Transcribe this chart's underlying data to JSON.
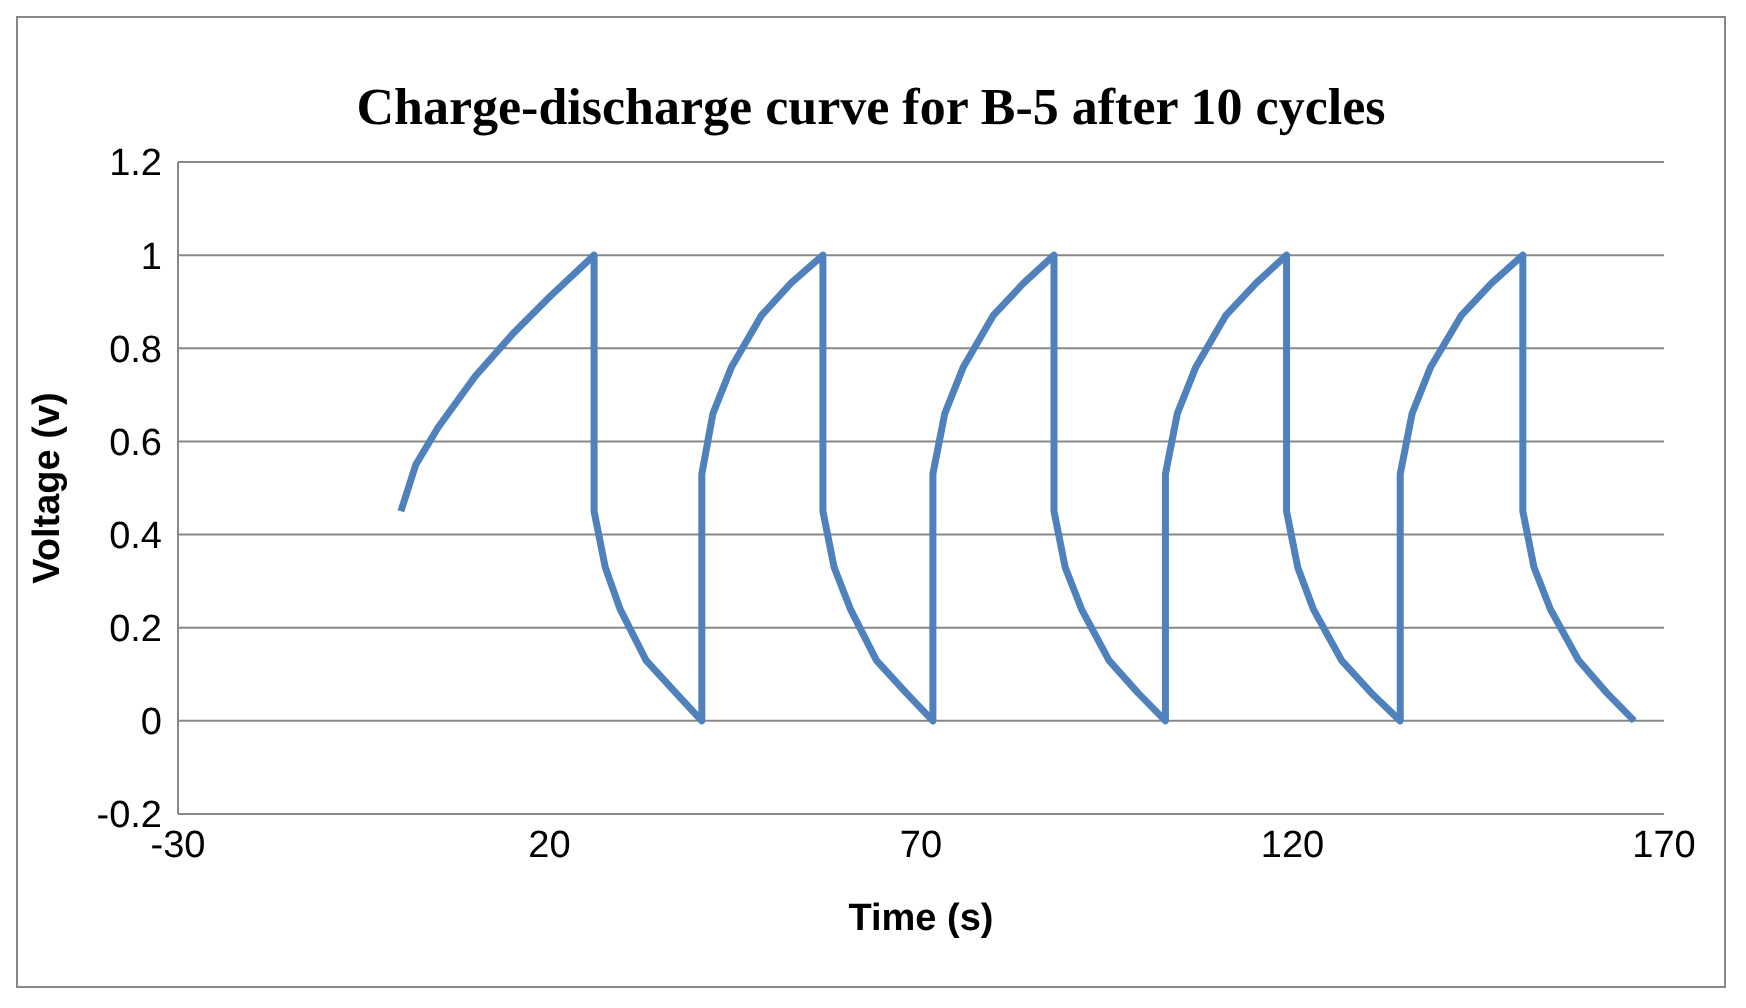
{
  "chart_data": {
    "type": "line",
    "title": "Charge-discharge curve for B-5 after 10 cycles",
    "xlabel": "Time (s)",
    "ylabel": "Voltage (v)",
    "xlim": [
      -30,
      170
    ],
    "xticks": [
      -30,
      20,
      70,
      120,
      170
    ],
    "ylim": [
      -0.2,
      1.2
    ],
    "yticks": [
      -0.2,
      0,
      0.2,
      0.4,
      0.6,
      0.8,
      1,
      1.2
    ],
    "grid": "y",
    "marker": "none",
    "line_style": "solid",
    "series": [
      {
        "color": "#4f81bd",
        "x": [
          0,
          2,
          5,
          10,
          15,
          20,
          26,
          26,
          27.5,
          29.5,
          33,
          37,
          40.5,
          40.5,
          42,
          44.5,
          48.5,
          52.5,
          56.8,
          56.8,
          58.3,
          60.5,
          64,
          68,
          71.6,
          71.6,
          73.2,
          75.7,
          79.7,
          83.8,
          87.9,
          87.9,
          89.4,
          91.6,
          95.3,
          99.2,
          102.9,
          102.9,
          104.5,
          107,
          111,
          115.1,
          119.2,
          119.2,
          120.7,
          122.8,
          126.6,
          130.6,
          134.5,
          134.5,
          136.1,
          138.6,
          142.7,
          146.8,
          151,
          151,
          152.5,
          154.7,
          158.5,
          162.3,
          166
        ],
        "values": [
          0.45,
          0.55,
          0.63,
          0.74,
          0.83,
          0.91,
          1,
          0.45,
          0.33,
          0.24,
          0.13,
          0.06,
          0,
          0.53,
          0.66,
          0.76,
          0.87,
          0.94,
          1,
          0.45,
          0.33,
          0.24,
          0.13,
          0.06,
          0,
          0.53,
          0.66,
          0.76,
          0.87,
          0.94,
          1,
          0.45,
          0.33,
          0.24,
          0.13,
          0.06,
          0,
          0.53,
          0.66,
          0.76,
          0.87,
          0.94,
          1,
          0.45,
          0.33,
          0.24,
          0.13,
          0.06,
          0,
          0.53,
          0.66,
          0.76,
          0.87,
          0.94,
          1,
          0.45,
          0.33,
          0.24,
          0.13,
          0.06,
          0
        ]
      }
    ]
  }
}
